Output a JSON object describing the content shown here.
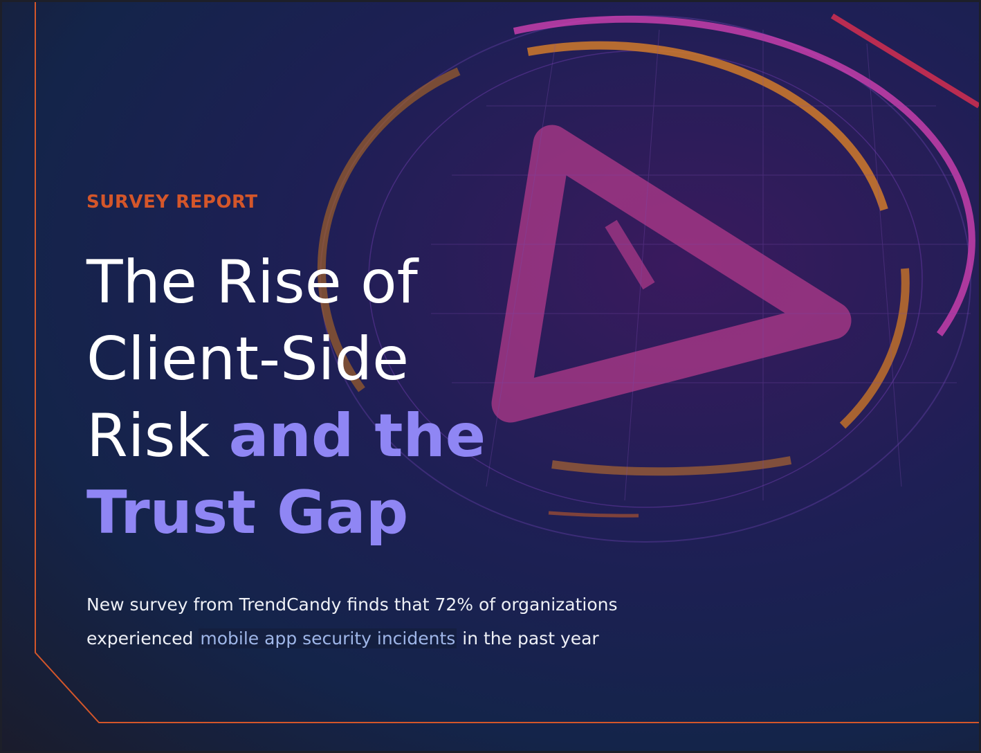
{
  "header": {
    "eyebrow": "SURVEY REPORT",
    "title": {
      "lines": [
        "The Rise of",
        "Client-Side",
        "Risk"
      ],
      "highlight_lines": [
        "and the",
        "Trust Gap"
      ]
    }
  },
  "summary": {
    "before": "New survey from TrendCandy finds that 72% of organizations experienced",
    "highlight": "mobile app security incidents",
    "after": "in the past year"
  }
}
